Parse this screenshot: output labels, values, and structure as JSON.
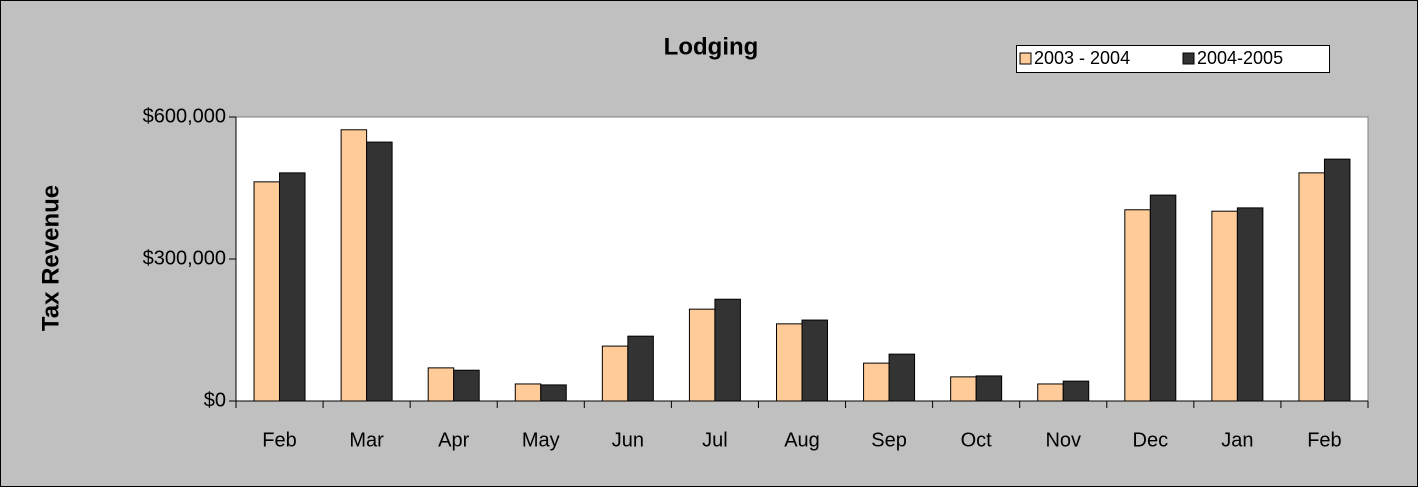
{
  "chart_data": {
    "type": "bar",
    "title": "Lodging",
    "y_label": "Tax Revenue",
    "categories": [
      "Feb",
      "Mar",
      "Apr",
      "May",
      "Jun",
      "Jul",
      "Aug",
      "Sep",
      "Oct",
      "Nov",
      "Dec",
      "Jan",
      "Feb"
    ],
    "series": [
      {
        "name": "2003 - 2004",
        "color": "#ffcc99",
        "values": [
          463000,
          573000,
          70000,
          36000,
          116000,
          194000,
          163000,
          80000,
          51000,
          36000,
          404000,
          401000,
          482000
        ]
      },
      {
        "name": "2004-2005",
        "color": "#333333",
        "values": [
          482000,
          547000,
          65000,
          34000,
          137000,
          215000,
          171000,
          99000,
          53000,
          42000,
          435000,
          408000,
          511000
        ]
      }
    ],
    "ylim": [
      0,
      600000
    ],
    "yticks": [
      {
        "value": 0,
        "label": "$0"
      },
      {
        "value": 300000,
        "label": "$300,000"
      },
      {
        "value": 600000,
        "label": "$600,000"
      }
    ],
    "grid": false,
    "legend": "top-right"
  }
}
